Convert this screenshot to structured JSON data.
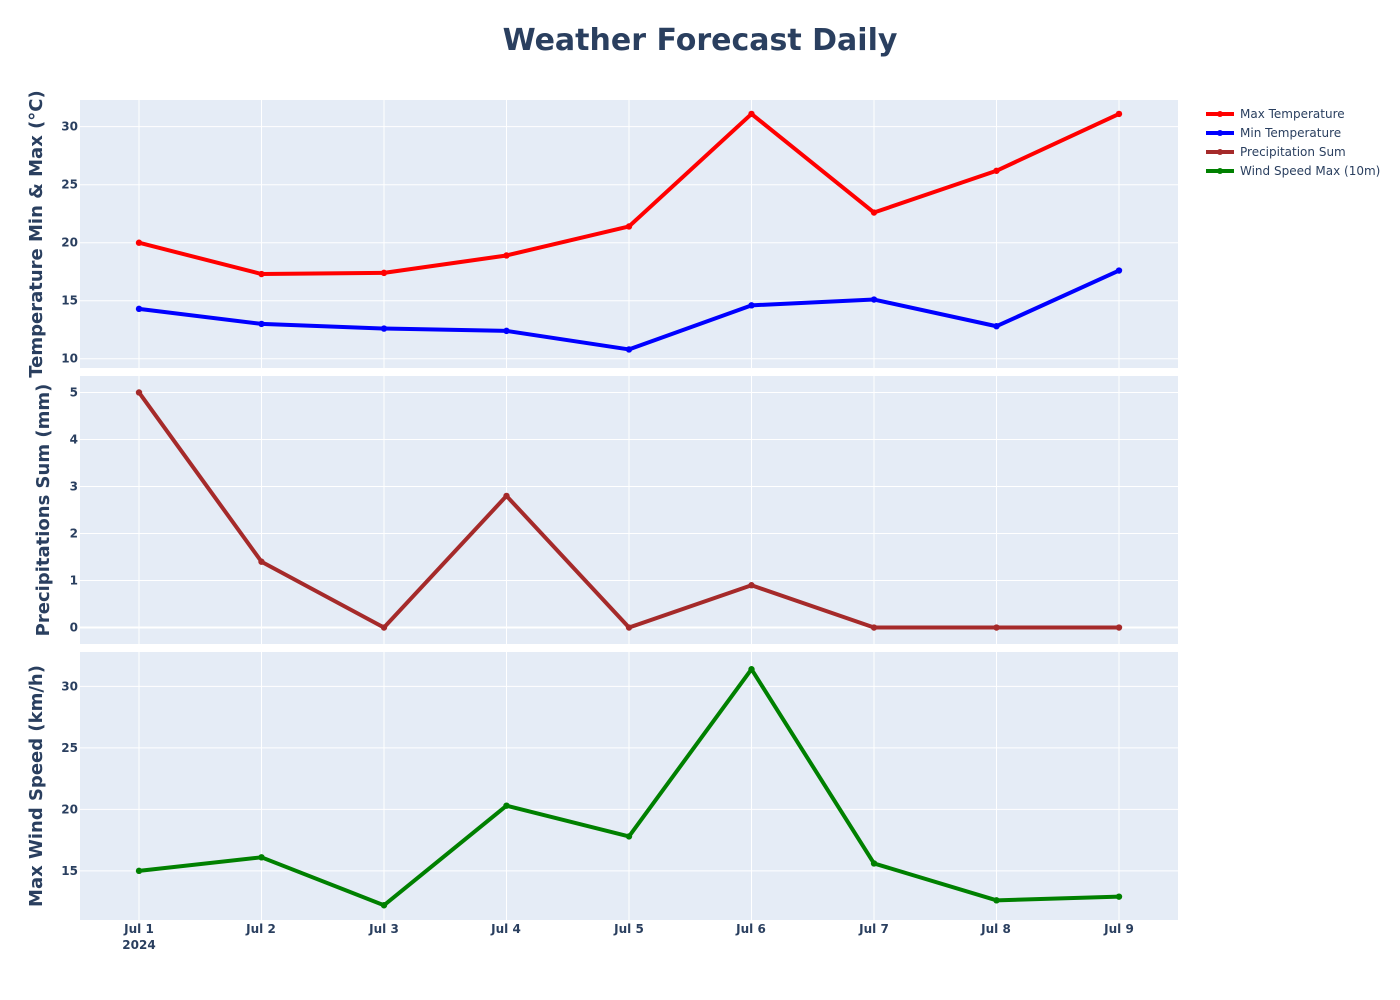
{
  "chart_data": {
    "type": "line",
    "title": "Weather Forecast Daily",
    "x": [
      "2024-07-01",
      "2024-07-02",
      "2024-07-03",
      "2024-07-04",
      "2024-07-05",
      "2024-07-06",
      "2024-07-07",
      "2024-07-08",
      "2024-07-09"
    ],
    "x_tick_labels": [
      "Jul 1",
      "Jul 2",
      "Jul 3",
      "Jul 4",
      "Jul 5",
      "Jul 6",
      "Jul 7",
      "Jul 8",
      "Jul 9"
    ],
    "x_year_label": "2024",
    "grid": true,
    "legend_position": "top-right",
    "panels": [
      {
        "ylabel": "Temperature Min & Max (°C)",
        "ylim": [
          9.2,
          32.3
        ],
        "yticks": [
          10,
          15,
          20,
          25,
          30
        ],
        "series": [
          {
            "name": "Max Temperature",
            "color": "#ff0000",
            "values": [
              20.0,
              17.3,
              17.4,
              18.9,
              21.4,
              31.1,
              22.6,
              26.2,
              31.1
            ]
          },
          {
            "name": "Min Temperature",
            "color": "#0000ff",
            "values": [
              14.3,
              13.0,
              12.6,
              12.4,
              10.8,
              14.6,
              15.1,
              12.8,
              17.6
            ]
          }
        ]
      },
      {
        "ylabel": "Precipitations Sum (mm)",
        "ylim": [
          -0.35,
          5.35
        ],
        "yticks": [
          0,
          1,
          2,
          3,
          4,
          5
        ],
        "series": [
          {
            "name": "Precipitation Sum",
            "color": "#a52a2a",
            "values": [
              5.0,
              1.4,
              0.0,
              2.8,
              0.0,
              0.9,
              0.0,
              0.0,
              0.0
            ]
          }
        ]
      },
      {
        "ylabel": "Max Wind Speed (km/h)",
        "ylim": [
          11.0,
          32.8
        ],
        "yticks": [
          15,
          20,
          25,
          30
        ],
        "series": [
          {
            "name": "Wind Speed Max (10m)",
            "color": "#008000",
            "values": [
              15.0,
              16.1,
              12.2,
              20.3,
              17.8,
              31.4,
              15.6,
              12.6,
              12.9
            ]
          }
        ]
      }
    ]
  }
}
